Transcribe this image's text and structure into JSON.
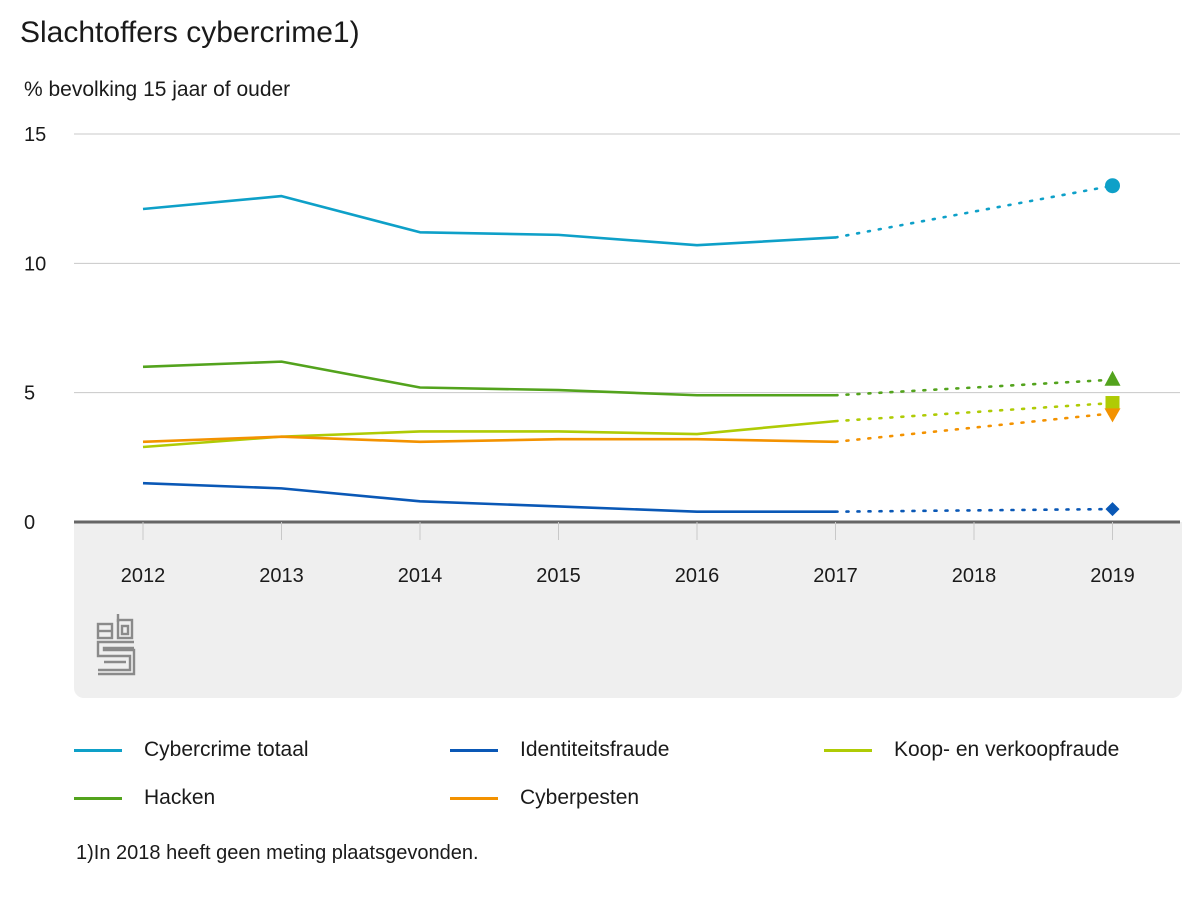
{
  "title": "Slachtoffers cybercrime1)",
  "subtitle": "% bevolking 15 jaar of ouder",
  "footnote": "1)In 2018 heeft geen meting plaatsgevonden.",
  "logo_icon": "cbs-logo-icon",
  "chart_data": {
    "type": "line",
    "title": "Slachtoffers cybercrime1)",
    "ylabel": "% bevolking 15 jaar of ouder",
    "xlabel": "",
    "x": [
      "2012",
      "2013",
      "2014",
      "2015",
      "2016",
      "2017",
      "2018",
      "2019"
    ],
    "ylim": [
      0,
      15
    ],
    "yticks": [
      0,
      5,
      10,
      15
    ],
    "grid": true,
    "legend_position": "bottom",
    "series": [
      {
        "name": "Cybercrime totaal",
        "color": "#0ea0c8",
        "marker": "circle",
        "values": [
          12.1,
          12.6,
          11.2,
          11.1,
          10.7,
          11.0,
          null,
          13.0
        ]
      },
      {
        "name": "Identiteitsfraude",
        "color": "#0a58b6",
        "marker": "diamond",
        "values": [
          1.5,
          1.3,
          0.8,
          0.6,
          0.4,
          0.4,
          null,
          0.5
        ]
      },
      {
        "name": "Koop- en verkoopfraude",
        "color": "#afcb05",
        "marker": "square",
        "values": [
          2.9,
          3.3,
          3.5,
          3.5,
          3.4,
          3.9,
          null,
          4.6
        ]
      },
      {
        "name": "Hacken",
        "color": "#53a31d",
        "marker": "triangle-up",
        "values": [
          6.0,
          6.2,
          5.2,
          5.1,
          4.9,
          4.9,
          null,
          5.5
        ]
      },
      {
        "name": "Cyberpesten",
        "color": "#f39200",
        "marker": "triangle-down",
        "values": [
          3.1,
          3.3,
          3.1,
          3.2,
          3.2,
          3.1,
          null,
          4.2
        ]
      }
    ]
  },
  "legend_order": [
    0,
    1,
    2,
    3,
    4
  ]
}
